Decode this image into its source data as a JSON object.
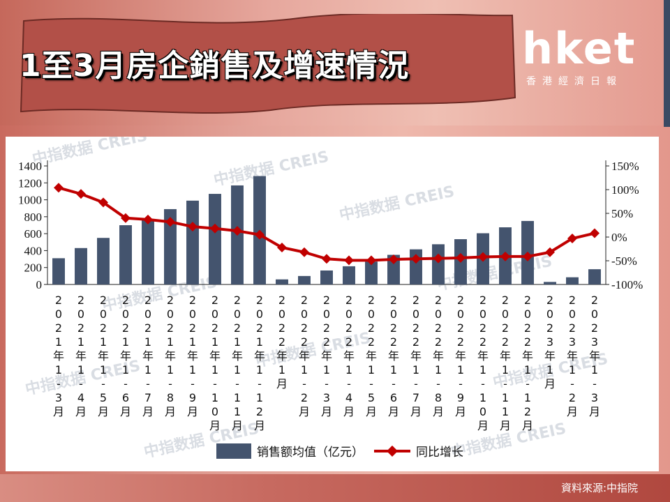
{
  "title": "1至3月房企銷售及增速情況",
  "logo": {
    "main": "hket",
    "sub": "香港經濟日報"
  },
  "source": "資料來源:中指院",
  "watermark": "中指数据 CREIS",
  "colors": {
    "bar": "#44546e",
    "line": "#c00000",
    "banner": "#b25048"
  },
  "chart_data": {
    "type": "bar+line",
    "categories": [
      "2021年1-3月",
      "2021年1-4月",
      "2021年1-5月",
      "2021年1-6月",
      "2021年1-7月",
      "2021年1-8月",
      "2021年1-9月",
      "2021年1-10月",
      "2021年1-11月",
      "2021年1-12月",
      "2022年1月",
      "2022年1-2月",
      "2022年1-3月",
      "2022年1-4月",
      "2022年1-5月",
      "2022年1-6月",
      "2022年1-7月",
      "2022年1-8月",
      "2022年1-9月",
      "2022年1-10月",
      "2022年1-11月",
      "2022年1-12月",
      "2023年1月",
      "2023年1-2月",
      "2023年1-3月"
    ],
    "series": [
      {
        "name": "销售额均值（亿元）",
        "type": "bar",
        "axis": "left",
        "values": [
          310,
          430,
          550,
          700,
          770,
          890,
          990,
          1070,
          1170,
          1280,
          60,
          100,
          165,
          215,
          270,
          350,
          415,
          475,
          535,
          605,
          675,
          750,
          30,
          85,
          180
        ]
      },
      {
        "name": "同比增长",
        "type": "line",
        "axis": "right",
        "unit": "%",
        "values": [
          104,
          91,
          73,
          40,
          37,
          32,
          22,
          18,
          13,
          5,
          -22,
          -32,
          -46,
          -49,
          -49,
          -47,
          -46,
          -45,
          -44,
          -42,
          -41,
          -41,
          -32,
          -3,
          8
        ]
      }
    ],
    "left_axis": {
      "ylim": [
        0,
        1400
      ],
      "ticks": [
        "0",
        "200",
        "400",
        "600",
        "800",
        "1000",
        "1200",
        "1400"
      ]
    },
    "right_axis": {
      "ylim": [
        -100,
        150
      ],
      "ticks": [
        "-100%",
        "-50%",
        "0%",
        "50%",
        "100%",
        "150%"
      ]
    },
    "legend": "bottom"
  }
}
